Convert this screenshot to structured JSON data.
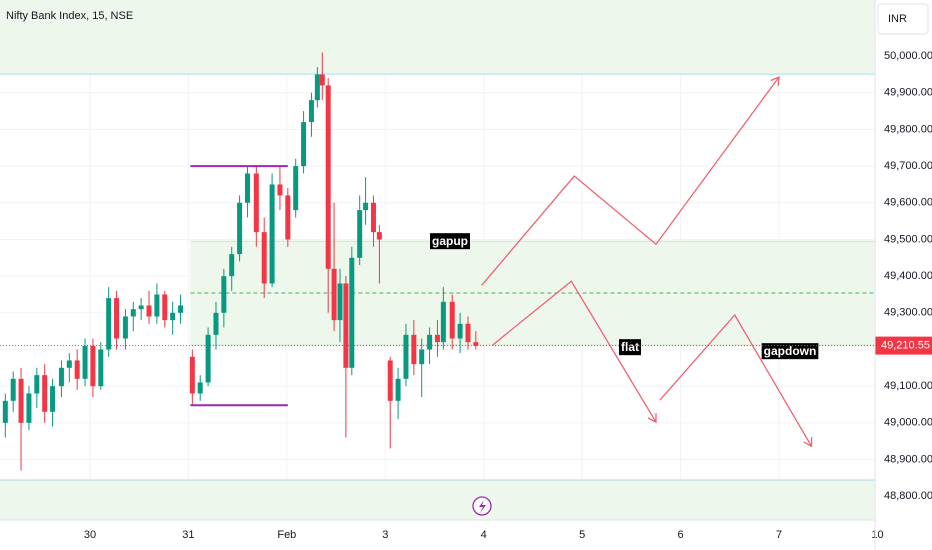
{
  "chart_data": {
    "type": "candlestick",
    "title": "Nifty Bank Index, 15, NSE",
    "currency": "INR",
    "xlim": [
      -0.914,
      7.975
    ],
    "xticks": [
      {
        "value": 0,
        "label": "30"
      },
      {
        "value": 1,
        "label": "31"
      },
      {
        "value": 2,
        "label": "Feb"
      },
      {
        "value": 3,
        "label": "3"
      },
      {
        "value": 4,
        "label": "4"
      },
      {
        "value": 5,
        "label": "5"
      },
      {
        "value": 6,
        "label": "6"
      },
      {
        "value": 7,
        "label": "7"
      },
      {
        "value": 8,
        "label": "10"
      }
    ],
    "ylim": [
      48735,
      50153
    ],
    "yticks": [
      {
        "value": 48800,
        "label": "48,800.00"
      },
      {
        "value": 48900,
        "label": "48,900.00"
      },
      {
        "value": 49000,
        "label": "49,000.00"
      },
      {
        "value": 49100,
        "label": "49,100.00"
      },
      {
        "value": 49200,
        "label": "49,200.00"
      },
      {
        "value": 49300,
        "label": "49,300.00"
      },
      {
        "value": 49400,
        "label": "49,400.00"
      },
      {
        "value": 49500,
        "label": "49,500.00"
      },
      {
        "value": 49600,
        "label": "49,600.00"
      },
      {
        "value": 49700,
        "label": "49,700.00"
      },
      {
        "value": 49800,
        "label": "49,800.00"
      },
      {
        "value": 49900,
        "label": "49,900.00"
      },
      {
        "value": 50000,
        "label": "50,000.00"
      }
    ],
    "grid": true,
    "series": [
      {
        "up_color": "#089981",
        "down_color": "#f23645",
        "x": [
          -0.86,
          -0.78,
          -0.7,
          -0.62,
          -0.54,
          -0.46,
          -0.38,
          -0.29,
          -0.21,
          -0.13,
          -0.05,
          0.03,
          0.11,
          0.19,
          0.27,
          0.36,
          0.44,
          0.52,
          0.6,
          0.68,
          0.76,
          0.84,
          0.92,
          1.04,
          1.12,
          1.2,
          1.28,
          1.36,
          1.44,
          1.52,
          1.6,
          1.69,
          1.77,
          1.85,
          1.93,
          2.01,
          2.09,
          2.17,
          2.25,
          2.31,
          2.36,
          2.42,
          2.48,
          2.54,
          2.6,
          2.66,
          2.74,
          2.8,
          2.88,
          2.94,
          3.05,
          3.13,
          3.21,
          3.29,
          3.37,
          3.45,
          3.53,
          3.59,
          3.68,
          3.76,
          3.84,
          3.92
        ],
        "open": [
          49000,
          49060,
          49120,
          49000,
          49080,
          49130,
          49030,
          49100,
          49150,
          49170,
          49120,
          49210,
          49100,
          49200,
          49340,
          49230,
          49290,
          49310,
          49320,
          49290,
          49350,
          49280,
          49300,
          49180,
          49080,
          49110,
          49240,
          49300,
          49400,
          49460,
          49600,
          49680,
          49520,
          49380,
          49650,
          49620,
          49580,
          49700,
          49820,
          49880,
          49950,
          49920,
          49420,
          49280,
          49380,
          49150,
          49450,
          49580,
          49600,
          49520,
          49170,
          49060,
          49120,
          49240,
          49160,
          49200,
          49240,
          49220,
          49330,
          49230,
          49270,
          49220
        ],
        "high": [
          49080,
          49140,
          49150,
          49100,
          49150,
          49160,
          49120,
          49170,
          49190,
          49200,
          49230,
          49230,
          49220,
          49370,
          49360,
          49310,
          49330,
          49340,
          49360,
          49380,
          49360,
          49330,
          49350,
          49200,
          49130,
          49260,
          49330,
          49420,
          49480,
          49620,
          49700,
          49700,
          49560,
          49680,
          49700,
          49640,
          49720,
          49850,
          49900,
          49970,
          50010,
          49940,
          49600,
          49420,
          49400,
          49480,
          49620,
          49670,
          49620,
          49540,
          49180,
          49150,
          49270,
          49280,
          49230,
          49260,
          49280,
          49370,
          49350,
          49300,
          49290,
          49250
        ],
        "low": [
          48960,
          49030,
          48870,
          48980,
          49040,
          49000,
          48990,
          49070,
          49110,
          49090,
          49100,
          49070,
          49090,
          49180,
          49200,
          49200,
          49250,
          49280,
          49270,
          49270,
          49260,
          49240,
          49270,
          49050,
          49060,
          49100,
          49200,
          49260,
          49360,
          49440,
          49560,
          49480,
          49340,
          49370,
          49580,
          49480,
          49560,
          49680,
          49780,
          49860,
          49880,
          49300,
          49250,
          49220,
          48960,
          49130,
          49430,
          49540,
          49480,
          49380,
          48930,
          49010,
          49100,
          49130,
          49070,
          49160,
          49180,
          49200,
          49200,
          49190,
          49200,
          49200
        ],
        "close": [
          49060,
          49120,
          49000,
          49080,
          49130,
          49030,
          49100,
          49150,
          49170,
          49120,
          49210,
          49100,
          49200,
          49340,
          49230,
          49290,
          49310,
          49320,
          49290,
          49350,
          49280,
          49300,
          49320,
          49080,
          49110,
          49240,
          49300,
          49400,
          49460,
          49600,
          49680,
          49520,
          49380,
          49650,
          49620,
          49500,
          49700,
          49820,
          49880,
          49950,
          49920,
          49420,
          49280,
          49380,
          49150,
          49450,
          49580,
          49600,
          49520,
          49500,
          49060,
          49120,
          49240,
          49160,
          49200,
          49240,
          49220,
          49330,
          49230,
          49270,
          49220,
          49210
        ]
      }
    ],
    "last_price": {
      "value": 49210.55,
      "label": "49,210.55",
      "color": "#f23645"
    },
    "zones": [
      {
        "from": 49951,
        "to": 50200,
        "fill": "#eef7ec",
        "border": "#a8dde6"
      },
      {
        "from": 48700,
        "to": 48844,
        "fill": "#eef7ec",
        "border": "#a8dde6"
      },
      {
        "from": 49212,
        "to": 49495,
        "x_start": 1.02,
        "fill": "#eef7ec",
        "border": "#c8e6c9"
      }
    ],
    "levels": [
      {
        "value": 49354,
        "x_start": 1.02,
        "color": "#4caf50"
      }
    ],
    "segments": [
      {
        "value": 49700,
        "x": [
          1.02,
          2.01
        ],
        "color": "#9c27b0"
      },
      {
        "value": 49048,
        "x": [
          1.02,
          2.01
        ],
        "color": "#9c27b0"
      }
    ],
    "projections": [
      {
        "name": "gapup",
        "color": "#f06272",
        "x": [
          3.98,
          4.92,
          5.75,
          7.0
        ],
        "y": [
          49375,
          49673,
          49487,
          49943
        ]
      },
      {
        "name": "flat",
        "color": "#f06272",
        "x": [
          4.09,
          4.89,
          5.75
        ],
        "y": [
          49212,
          49386,
          49002
        ]
      },
      {
        "name": "gapdown",
        "color": "#f06272",
        "x": [
          5.79,
          6.55,
          7.33
        ],
        "y": [
          49062,
          49294,
          48936
        ]
      }
    ]
  }
}
